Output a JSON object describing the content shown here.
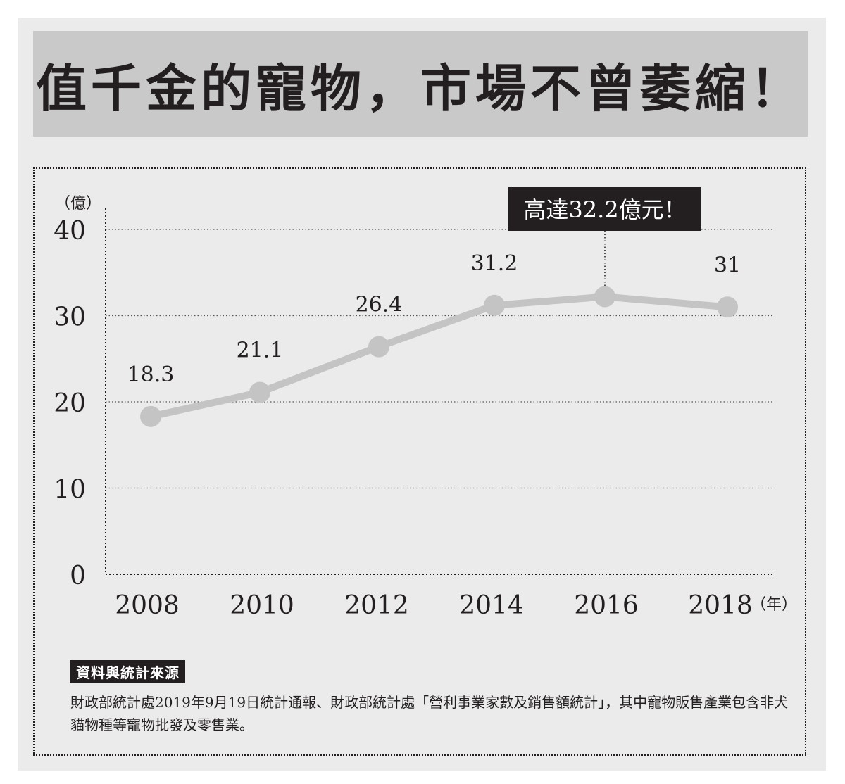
{
  "title": "值千金的寵物，市場不曾萎縮！",
  "source": {
    "label": "資料與統計來源",
    "text": "財政部統計處2019年9月19日統計通報、財政部統計處「營利事業家數及銷售額統計」，其中寵物販售產業包含非犬貓物種等寵物批發及零售業。"
  },
  "colors": {
    "background": "#ebebeb",
    "title_bar": "#c9c9c9",
    "line": "#c4c4c4",
    "marker": "#c4c4c4",
    "text": "#231f20",
    "callout_bg": "#231f20"
  },
  "chart_data": {
    "type": "line",
    "x": [
      "2008",
      "2010",
      "2012",
      "2014",
      "2016",
      "2018"
    ],
    "series": [
      {
        "values": [
          18.3,
          21.1,
          26.4,
          31.2,
          32.2,
          31
        ],
        "data_labels": [
          "18.3",
          "21.1",
          "26.4",
          "31.2",
          "",
          "31"
        ]
      }
    ],
    "y_unit": "（億）",
    "x_unit": "（年）",
    "ylim": [
      0,
      40
    ],
    "yticks": [
      0,
      10,
      20,
      30,
      40
    ],
    "grid": true,
    "grid_style": "dotted",
    "annotation": {
      "x": "2016",
      "value": 32.2,
      "text": "高達32.2億元！"
    }
  }
}
